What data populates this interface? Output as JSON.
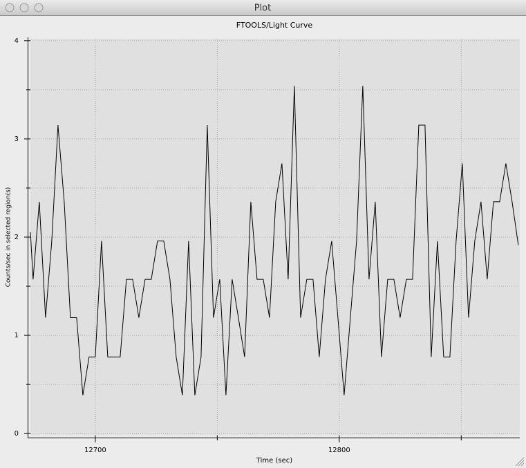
{
  "window": {
    "title": "Plot"
  },
  "chart_data": {
    "type": "line",
    "title": "FTOOLS/Light Curve",
    "xlabel": "Time (sec)",
    "ylabel": "Counts/sec in selected region(s)",
    "x": [
      12673.4,
      12674.5,
      12677.05,
      12679.6,
      12682.15,
      12684.7,
      12687.25,
      12689.8,
      12692.35,
      12694.9,
      12697.45,
      12700,
      12702.55,
      12705.1,
      12707.65,
      12710.2,
      12712.75,
      12715.3,
      12717.85,
      12720.4,
      12722.95,
      12725.5,
      12728.05,
      12730.6,
      12733.15,
      12735.7,
      12738.25,
      12740.8,
      12743.35,
      12745.9,
      12748.45,
      12751,
      12753.55,
      12756.1,
      12758.65,
      12761.2,
      12763.75,
      12766.3,
      12768.85,
      12771.4,
      12773.95,
      12776.5,
      12779.05,
      12781.6,
      12784.15,
      12786.7,
      12789.25,
      12791.8,
      12794.35,
      12796.9,
      12799.45,
      12802,
      12804.55,
      12807.1,
      12809.65,
      12812.2,
      12814.75,
      12817.3,
      12819.85,
      12822.4,
      12824.95,
      12827.5,
      12830.05,
      12832.6,
      12835.15,
      12837.7,
      12840.25,
      12842.8,
      12845.35,
      12847.9,
      12850.45,
      12853,
      12855.55,
      12858.1,
      12860.65,
      12863.2,
      12865.75,
      12868.3,
      12870.85,
      12873.4
    ],
    "values": [
      2.05,
      1.57,
      2.36,
      1.18,
      1.96,
      3.14,
      2.36,
      1.18,
      1.18,
      0.39,
      0.78,
      0.78,
      1.96,
      0.78,
      0.78,
      0.78,
      1.57,
      1.57,
      1.18,
      1.57,
      1.57,
      1.96,
      1.96,
      1.57,
      0.78,
      0.39,
      1.96,
      0.39,
      0.78,
      3.14,
      1.18,
      1.57,
      0.39,
      1.57,
      1.18,
      0.78,
      2.36,
      1.57,
      1.57,
      1.18,
      2.36,
      2.75,
      1.57,
      3.54,
      1.18,
      1.57,
      1.57,
      0.78,
      1.57,
      1.96,
      1.18,
      0.39,
      1.18,
      1.96,
      3.54,
      1.57,
      2.36,
      0.78,
      1.57,
      1.57,
      1.18,
      1.57,
      1.57,
      3.14,
      3.14,
      0.78,
      1.96,
      0.78,
      0.78,
      1.96,
      2.75,
      1.18,
      1.96,
      2.36,
      1.57,
      2.36,
      2.36,
      2.75,
      2.36,
      1.92
    ],
    "color": "#000000",
    "xlim": [
      12673.4,
      12874
    ],
    "xticks": [
      12700,
      12800
    ],
    "xminorticks": [
      12750,
      12850
    ],
    "ylim": [
      -0.02,
      4.02
    ],
    "yticks": [
      0,
      1,
      2,
      3,
      4
    ],
    "yminorticks": [
      0.5,
      1.5,
      2.5,
      3.5
    ],
    "grid": true
  }
}
